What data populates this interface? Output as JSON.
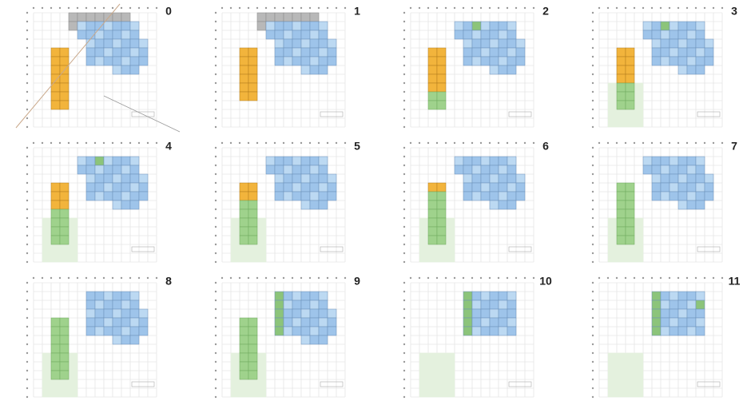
{
  "panels": [
    {
      "label": "0"
    },
    {
      "label": "1"
    },
    {
      "label": "2"
    },
    {
      "label": "3"
    },
    {
      "label": "4"
    },
    {
      "label": "5"
    },
    {
      "label": "6"
    },
    {
      "label": "7"
    },
    {
      "label": "8"
    },
    {
      "label": "9"
    },
    {
      "label": "10"
    },
    {
      "label": "11"
    }
  ]
}
